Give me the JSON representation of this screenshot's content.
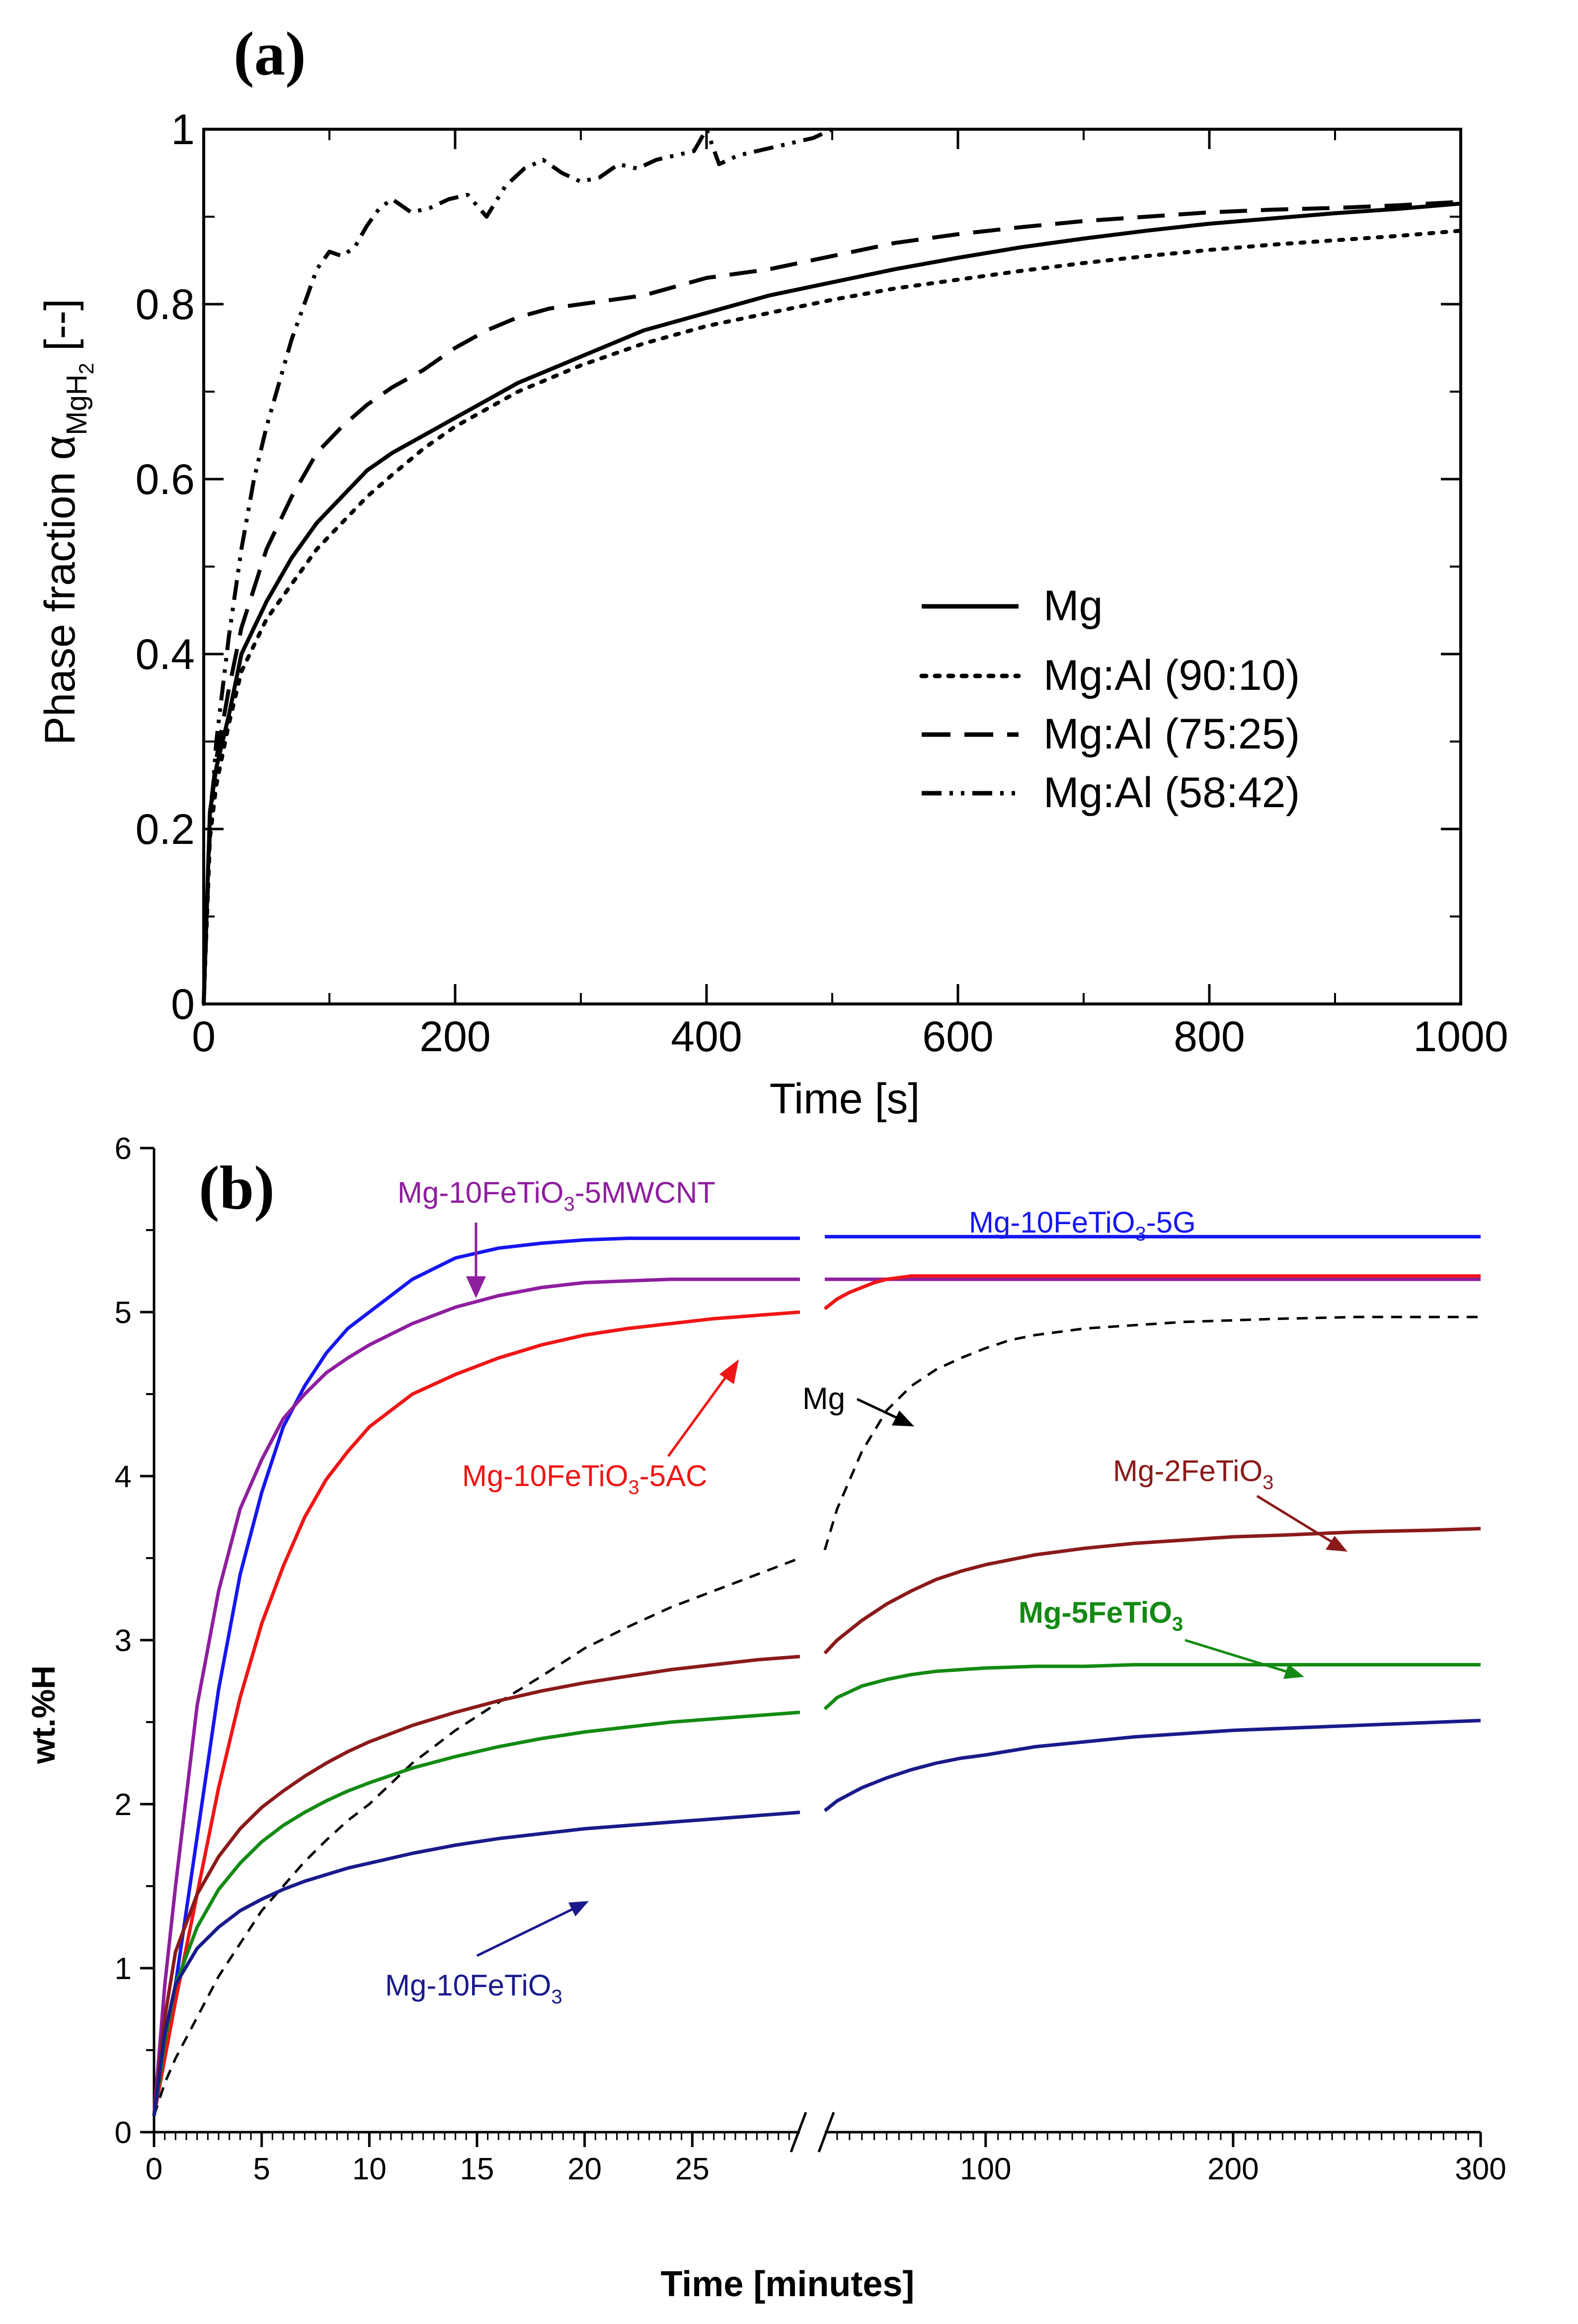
{
  "chart_data": [
    {
      "type": "line",
      "panel_label": "(a)",
      "title": "",
      "xlabel": "Time [s]",
      "ylabel_prefix": "Phase fraction α",
      "ylabel_subscript_main": "MgH",
      "ylabel_subscript_inner": "2",
      "ylabel_suffix": " [--]",
      "xlim": [
        0,
        1000
      ],
      "ylim": [
        0,
        1
      ],
      "xticks": [
        0,
        200,
        400,
        600,
        800,
        1000
      ],
      "yticks": [
        0,
        0.2,
        0.4,
        0.6,
        0.8,
        1
      ],
      "ytick_labels": [
        "0",
        "0.2",
        "0.4",
        "0.6",
        "0.8",
        "1"
      ],
      "grid": false,
      "legend_position": "center-right",
      "series": [
        {
          "name": "Mg",
          "style": "solid",
          "color": "#000000",
          "x": [
            0,
            5,
            10,
            20,
            30,
            50,
            70,
            90,
            110,
            130,
            150,
            175,
            200,
            225,
            250,
            275,
            300,
            350,
            400,
            450,
            500,
            550,
            600,
            650,
            700,
            750,
            800,
            850,
            900,
            950,
            1000
          ],
          "y": [
            0.0,
            0.22,
            0.27,
            0.33,
            0.4,
            0.46,
            0.51,
            0.55,
            0.58,
            0.61,
            0.63,
            0.65,
            0.67,
            0.69,
            0.71,
            0.725,
            0.74,
            0.77,
            0.79,
            0.81,
            0.825,
            0.84,
            0.853,
            0.865,
            0.875,
            0.884,
            0.892,
            0.898,
            0.904,
            0.909,
            0.915
          ]
        },
        {
          "name": "Mg:Al (90:10)",
          "style": "dotted",
          "color": "#000000",
          "x": [
            0,
            5,
            10,
            20,
            30,
            50,
            70,
            90,
            110,
            130,
            150,
            175,
            200,
            225,
            250,
            275,
            300,
            350,
            400,
            450,
            500,
            550,
            600,
            650,
            700,
            750,
            800,
            850,
            900,
            950,
            1000
          ],
          "y": [
            0.0,
            0.19,
            0.25,
            0.32,
            0.38,
            0.44,
            0.48,
            0.52,
            0.55,
            0.58,
            0.605,
            0.635,
            0.66,
            0.68,
            0.7,
            0.715,
            0.73,
            0.755,
            0.775,
            0.79,
            0.805,
            0.818,
            0.828,
            0.838,
            0.847,
            0.855,
            0.862,
            0.868,
            0.873,
            0.878,
            0.884
          ]
        },
        {
          "name": "Mg:Al (75:25)",
          "style": "dashed",
          "color": "#000000",
          "x": [
            0,
            5,
            10,
            20,
            30,
            50,
            70,
            90,
            110,
            130,
            150,
            175,
            200,
            225,
            250,
            275,
            300,
            350,
            400,
            450,
            500,
            550,
            600,
            650,
            700,
            750,
            800,
            850,
            900,
            950,
            1000
          ],
          "y": [
            0.0,
            0.22,
            0.28,
            0.36,
            0.43,
            0.52,
            0.58,
            0.63,
            0.66,
            0.685,
            0.705,
            0.725,
            0.75,
            0.77,
            0.785,
            0.795,
            0.8,
            0.81,
            0.83,
            0.84,
            0.855,
            0.87,
            0.88,
            0.888,
            0.895,
            0.9,
            0.905,
            0.908,
            0.91,
            0.913,
            0.917
          ]
        },
        {
          "name": "Mg:Al (58:42)",
          "style": "dash-dot-dot",
          "color": "#000000",
          "x": [
            0,
            5,
            10,
            20,
            30,
            40,
            50,
            60,
            70,
            80,
            90,
            100,
            110,
            120,
            130,
            140,
            150,
            165,
            180,
            195,
            210,
            225,
            240,
            255,
            270,
            285,
            300,
            315,
            330,
            345,
            360,
            375,
            390,
            400,
            410,
            425,
            440,
            455,
            470,
            485,
            500
          ],
          "y": [
            0.0,
            0.2,
            0.3,
            0.42,
            0.52,
            0.6,
            0.66,
            0.71,
            0.76,
            0.8,
            0.84,
            0.86,
            0.855,
            0.865,
            0.89,
            0.91,
            0.92,
            0.905,
            0.91,
            0.92,
            0.925,
            0.9,
            0.935,
            0.955,
            0.965,
            0.95,
            0.94,
            0.945,
            0.96,
            0.955,
            0.965,
            0.97,
            0.975,
            1.0,
            0.96,
            0.97,
            0.975,
            0.98,
            0.985,
            0.99,
            1.0
          ]
        }
      ]
    },
    {
      "type": "line",
      "panel_label": "(b)",
      "title": "",
      "xlabel": "Time [minutes]",
      "ylabel": "wt.%H",
      "ylim": [
        0,
        6
      ],
      "yticks": [
        0,
        1,
        2,
        3,
        4,
        5,
        6
      ],
      "x_axis_break": true,
      "left_segment": {
        "xlim": [
          0,
          30
        ],
        "xticks": [
          0,
          5,
          10,
          15,
          20,
          25
        ]
      },
      "right_segment": {
        "xlim": [
          35,
          300
        ],
        "xticks": [
          100,
          200,
          300
        ]
      },
      "grid": false,
      "series": [
        {
          "name": "Mg-10FeTiO3-5G",
          "label_main": "Mg-10FeTiO",
          "label_sub": "3",
          "label_tail": "-5G",
          "style": "solid",
          "color": "#1616f0",
          "left": {
            "x": [
              0,
              0.5,
              1,
              2,
              3,
              4,
              5,
              6,
              7,
              8,
              9,
              10,
              12,
              14,
              16,
              18,
              20,
              22,
              24,
              26,
              28,
              30
            ],
            "y": [
              0.1,
              0.5,
              0.9,
              1.8,
              2.7,
              3.4,
              3.9,
              4.3,
              4.55,
              4.75,
              4.9,
              5.0,
              5.2,
              5.33,
              5.39,
              5.42,
              5.44,
              5.45,
              5.45,
              5.45,
              5.45,
              5.45
            ]
          },
          "right": {
            "x": [
              35,
              300
            ],
            "y": [
              5.46,
              5.46
            ]
          }
        },
        {
          "name": "Mg-10FeTiO3-5MWCNT",
          "label_main": "Mg-10FeTiO",
          "label_sub": "3",
          "label_tail": "-5MWCNT",
          "style": "solid",
          "color": "#8e1f9e",
          "left": {
            "x": [
              0,
              0.5,
              1,
              2,
              3,
              4,
              5,
              6,
              7,
              8,
              9,
              10,
              12,
              14,
              16,
              18,
              20,
              22,
              24,
              26,
              28,
              30
            ],
            "y": [
              0.1,
              0.9,
              1.5,
              2.6,
              3.3,
              3.8,
              4.1,
              4.35,
              4.5,
              4.63,
              4.72,
              4.8,
              4.93,
              5.03,
              5.1,
              5.15,
              5.18,
              5.19,
              5.2,
              5.2,
              5.2,
              5.2
            ]
          },
          "right": {
            "x": [
              35,
              300
            ],
            "y": [
              5.2,
              5.2
            ]
          }
        },
        {
          "name": "Mg-10FeTiO3-5AC",
          "label_main": "Mg-10FeTiO",
          "label_sub": "3",
          "label_tail": "-5AC",
          "style": "solid",
          "color": "#f01515",
          "left": {
            "x": [
              0,
              0.5,
              1,
              2,
              3,
              4,
              5,
              6,
              7,
              8,
              9,
              10,
              12,
              14,
              16,
              18,
              20,
              22,
              24,
              26,
              28,
              30
            ],
            "y": [
              0.1,
              0.45,
              0.8,
              1.45,
              2.1,
              2.65,
              3.1,
              3.45,
              3.75,
              3.98,
              4.15,
              4.3,
              4.5,
              4.62,
              4.72,
              4.8,
              4.86,
              4.9,
              4.93,
              4.96,
              4.98,
              5.0
            ]
          },
          "right": {
            "x": [
              35,
              40,
              45,
              50,
              55,
              60,
              65,
              70,
              80,
              100,
              150,
              200,
              250,
              300
            ],
            "y": [
              5.02,
              5.08,
              5.12,
              5.15,
              5.18,
              5.2,
              5.21,
              5.22,
              5.22,
              5.22,
              5.22,
              5.22,
              5.22,
              5.22
            ]
          }
        },
        {
          "name": "Mg",
          "label_main": "Mg",
          "label_sub": "",
          "label_tail": "",
          "style": "dashed",
          "color": "#000000",
          "left": {
            "x": [
              0,
              0.5,
              1,
              2,
              3,
              4,
              5,
              6,
              7,
              8,
              9,
              10,
              12,
              14,
              16,
              18,
              20,
              22,
              24,
              26,
              28,
              30
            ],
            "y": [
              0.1,
              0.3,
              0.45,
              0.7,
              0.95,
              1.15,
              1.35,
              1.5,
              1.65,
              1.78,
              1.9,
              2.0,
              2.25,
              2.45,
              2.62,
              2.78,
              2.95,
              3.08,
              3.2,
              3.3,
              3.4,
              3.5
            ]
          },
          "right": {
            "x": [
              35,
              40,
              50,
              60,
              70,
              80,
              90,
              100,
              110,
              120,
              140,
              160,
              180,
              200,
              220,
              250,
              280,
              300
            ],
            "y": [
              3.55,
              3.8,
              4.15,
              4.4,
              4.55,
              4.65,
              4.72,
              4.78,
              4.83,
              4.86,
              4.9,
              4.92,
              4.94,
              4.95,
              4.96,
              4.97,
              4.97,
              4.97
            ]
          }
        },
        {
          "name": "Mg-2FeTiO3",
          "label_main": "Mg-2FeTiO",
          "label_sub": "3",
          "label_tail": "",
          "style": "solid",
          "color": "#8b1a1a",
          "left": {
            "x": [
              0,
              0.5,
              1,
              2,
              3,
              4,
              5,
              6,
              7,
              8,
              9,
              10,
              12,
              14,
              16,
              18,
              20,
              22,
              24,
              26,
              28,
              30
            ],
            "y": [
              0.1,
              0.7,
              1.1,
              1.45,
              1.68,
              1.85,
              1.98,
              2.08,
              2.17,
              2.25,
              2.32,
              2.38,
              2.48,
              2.56,
              2.63,
              2.69,
              2.74,
              2.78,
              2.82,
              2.85,
              2.88,
              2.9
            ]
          },
          "right": {
            "x": [
              35,
              40,
              50,
              60,
              70,
              80,
              90,
              100,
              120,
              140,
              160,
              180,
              200,
              220,
              250,
              280,
              300
            ],
            "y": [
              2.92,
              3.0,
              3.12,
              3.22,
              3.3,
              3.37,
              3.42,
              3.46,
              3.52,
              3.56,
              3.59,
              3.61,
              3.63,
              3.64,
              3.66,
              3.67,
              3.68
            ]
          }
        },
        {
          "name": "Mg-5FeTiO3",
          "label_main": "Mg-5FeTiO",
          "label_sub": "3",
          "label_tail": "",
          "style": "solid",
          "color": "#138a13",
          "left": {
            "x": [
              0,
              0.5,
              1,
              2,
              3,
              4,
              5,
              6,
              7,
              8,
              9,
              10,
              12,
              14,
              16,
              18,
              20,
              22,
              24,
              26,
              28,
              30
            ],
            "y": [
              0.1,
              0.55,
              0.9,
              1.25,
              1.48,
              1.64,
              1.77,
              1.87,
              1.95,
              2.02,
              2.08,
              2.13,
              2.22,
              2.29,
              2.35,
              2.4,
              2.44,
              2.47,
              2.5,
              2.52,
              2.54,
              2.56
            ]
          },
          "right": {
            "x": [
              35,
              40,
              50,
              60,
              70,
              80,
              90,
              100,
              120,
              140,
              160,
              180,
              200,
              250,
              300
            ],
            "y": [
              2.58,
              2.65,
              2.72,
              2.76,
              2.79,
              2.81,
              2.82,
              2.83,
              2.84,
              2.84,
              2.85,
              2.85,
              2.85,
              2.85,
              2.85
            ]
          }
        },
        {
          "name": "Mg-10FeTiO3",
          "label_main": "Mg-10FeTiO",
          "label_sub": "3",
          "label_tail": "",
          "style": "solid",
          "color": "#1a1a8c",
          "left": {
            "x": [
              0,
              0.5,
              1,
              2,
              3,
              4,
              5,
              6,
              7,
              8,
              9,
              10,
              12,
              14,
              16,
              18,
              20,
              22,
              24,
              26,
              28,
              30
            ],
            "y": [
              0.1,
              0.6,
              0.9,
              1.12,
              1.25,
              1.35,
              1.42,
              1.48,
              1.53,
              1.57,
              1.61,
              1.64,
              1.7,
              1.75,
              1.79,
              1.82,
              1.85,
              1.87,
              1.89,
              1.91,
              1.93,
              1.95
            ]
          },
          "right": {
            "x": [
              35,
              40,
              50,
              60,
              70,
              80,
              90,
              100,
              120,
              140,
              160,
              180,
              200,
              250,
              300
            ],
            "y": [
              1.96,
              2.02,
              2.1,
              2.16,
              2.21,
              2.25,
              2.28,
              2.3,
              2.35,
              2.38,
              2.41,
              2.43,
              2.45,
              2.48,
              2.51
            ]
          }
        }
      ]
    }
  ]
}
